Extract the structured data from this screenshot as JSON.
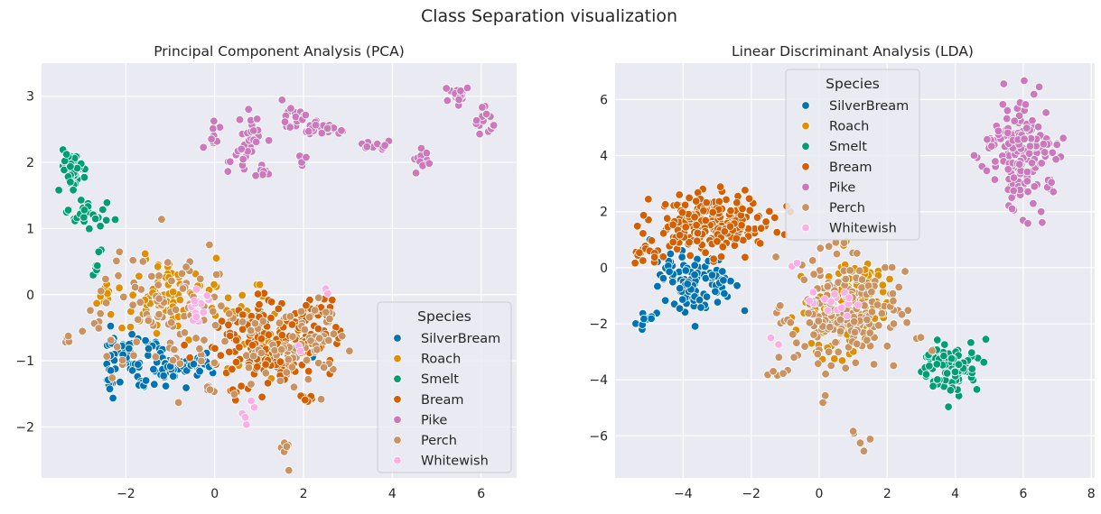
{
  "figure": {
    "suptitle": "Class Separation visualization",
    "background": "#ffffff",
    "axes_background": "#eaeaf2",
    "grid_color": "#ffffff"
  },
  "chart_data": [
    {
      "type": "scatter",
      "title": "Principal Component Analysis (PCA)",
      "xlabel": "",
      "ylabel": "",
      "xlim": [
        -3.9,
        6.8
      ],
      "ylim": [
        -2.77,
        3.5
      ],
      "xticks": [
        -2,
        0,
        2,
        4,
        6
      ],
      "yticks": [
        -2,
        -1,
        0,
        1,
        2,
        3
      ],
      "grid": true,
      "legend": {
        "title": "Species",
        "placement": "lower-right",
        "entries": [
          "SilverBream",
          "Roach",
          "Smelt",
          "Bream",
          "Pike",
          "Perch",
          "Whitewish"
        ]
      },
      "series": [
        {
          "name": "SilverBream",
          "color": "#0173b2",
          "clusters": [
            {
              "cx": -2.0,
              "cy": -0.85,
              "sx": 0.32,
              "sy": 0.18,
              "n": 50
            },
            {
              "cx": -1.1,
              "cy": -1.1,
              "sx": 0.3,
              "sy": 0.12,
              "n": 45
            },
            {
              "cx": -0.3,
              "cy": -1.05,
              "sx": 0.15,
              "sy": 0.1,
              "n": 18
            },
            {
              "cx": -2.35,
              "cy": -1.3,
              "sx": 0.06,
              "sy": 0.13,
              "n": 10
            },
            {
              "cx": -1.5,
              "cy": -1.35,
              "sx": 0.15,
              "sy": 0.06,
              "n": 8
            },
            {
              "cx": 2.2,
              "cy": -0.85,
              "sx": 0.08,
              "sy": 0.08,
              "n": 3
            }
          ]
        },
        {
          "name": "Roach",
          "color": "#de8f05",
          "clusters": [
            {
              "cx": -1.1,
              "cy": -0.05,
              "sx": 0.5,
              "sy": 0.28,
              "n": 75
            },
            {
              "cx": 0.5,
              "cy": -0.3,
              "sx": 0.35,
              "sy": 0.28,
              "n": 30
            },
            {
              "cx": -2.5,
              "cy": -0.1,
              "sx": 0.07,
              "sy": 0.15,
              "n": 10
            },
            {
              "cx": 1.6,
              "cy": -0.6,
              "sx": 0.3,
              "sy": 0.25,
              "n": 10
            }
          ]
        },
        {
          "name": "Smelt",
          "color": "#029e73",
          "clusters": [
            {
              "cx": -3.2,
              "cy": 1.9,
              "sx": 0.12,
              "sy": 0.18,
              "n": 55
            },
            {
              "cx": -2.85,
              "cy": 1.22,
              "sx": 0.22,
              "sy": 0.09,
              "n": 26
            },
            {
              "cx": -2.65,
              "cy": 0.5,
              "sx": 0.06,
              "sy": 0.12,
              "n": 10
            },
            {
              "cx": 1.1,
              "cy": -0.35,
              "sx": 0.1,
              "sy": 0.08,
              "n": 4
            },
            {
              "cx": 1.7,
              "cy": -1.0,
              "sx": 0.1,
              "sy": 0.08,
              "n": 3
            }
          ]
        },
        {
          "name": "Bream",
          "color": "#d55e00",
          "clusters": [
            {
              "cx": 1.0,
              "cy": -0.75,
              "sx": 0.55,
              "sy": 0.3,
              "n": 150
            },
            {
              "cx": 2.3,
              "cy": -0.5,
              "sx": 0.25,
              "sy": 0.28,
              "n": 45
            },
            {
              "cx": 1.6,
              "cy": -1.0,
              "sx": 0.35,
              "sy": 0.15,
              "n": 30
            },
            {
              "cx": 2.1,
              "cy": -1.55,
              "sx": 0.1,
              "sy": 0.05,
              "n": 7
            },
            {
              "cx": 0.55,
              "cy": -1.45,
              "sx": 0.08,
              "sy": 0.04,
              "n": 4
            }
          ]
        },
        {
          "name": "Pike",
          "color": "#cc78bc",
          "clusters": [
            {
              "cx": 0.0,
              "cy": 2.38,
              "sx": 0.1,
              "sy": 0.15,
              "n": 8
            },
            {
              "cx": 0.55,
              "cy": 2.05,
              "sx": 0.15,
              "sy": 0.1,
              "n": 15
            },
            {
              "cx": 0.9,
              "cy": 2.45,
              "sx": 0.2,
              "sy": 0.12,
              "n": 18
            },
            {
              "cx": 1.05,
              "cy": 1.85,
              "sx": 0.1,
              "sy": 0.06,
              "n": 7
            },
            {
              "cx": 1.8,
              "cy": 2.68,
              "sx": 0.15,
              "sy": 0.12,
              "n": 18
            },
            {
              "cx": 2.2,
              "cy": 2.55,
              "sx": 0.12,
              "sy": 0.08,
              "n": 12
            },
            {
              "cx": 2.7,
              "cy": 2.52,
              "sx": 0.15,
              "sy": 0.06,
              "n": 14
            },
            {
              "cx": 1.95,
              "cy": 2.05,
              "sx": 0.06,
              "sy": 0.06,
              "n": 6
            },
            {
              "cx": 3.65,
              "cy": 2.25,
              "sx": 0.15,
              "sy": 0.04,
              "n": 10
            },
            {
              "cx": 4.65,
              "cy": 2.0,
              "sx": 0.1,
              "sy": 0.08,
              "n": 12
            },
            {
              "cx": 5.5,
              "cy": 3.0,
              "sx": 0.12,
              "sy": 0.1,
              "n": 18
            },
            {
              "cx": 6.15,
              "cy": 2.55,
              "sx": 0.08,
              "sy": 0.1,
              "n": 9
            },
            {
              "cx": 6.05,
              "cy": 2.75,
              "sx": 0.05,
              "sy": 0.06,
              "n": 4
            },
            {
              "cx": 5.85,
              "cy": 2.6,
              "sx": 0.04,
              "sy": 0.04,
              "n": 2
            },
            {
              "cx": 0.0,
              "cy": 2.65,
              "sx": 0.02,
              "sy": 0.02,
              "n": 1
            },
            {
              "cx": -0.25,
              "cy": 2.2,
              "sx": 0.02,
              "sy": 0.02,
              "n": 1
            }
          ]
        },
        {
          "name": "Perch",
          "color": "#ca9161",
          "clusters": [
            {
              "cx": -1.0,
              "cy": -0.3,
              "sx": 0.7,
              "sy": 0.45,
              "n": 90
            },
            {
              "cx": 1.6,
              "cy": -0.9,
              "sx": 0.55,
              "sy": 0.3,
              "n": 55
            },
            {
              "cx": 2.3,
              "cy": -0.6,
              "sx": 0.3,
              "sy": 0.3,
              "n": 22
            },
            {
              "cx": -3.3,
              "cy": -0.72,
              "sx": 0.06,
              "sy": 0.08,
              "n": 5
            },
            {
              "cx": 1.6,
              "cy": -2.35,
              "sx": 0.08,
              "sy": 0.1,
              "n": 6
            },
            {
              "cx": -2.6,
              "cy": -0.3,
              "sx": 0.15,
              "sy": 0.2,
              "n": 10
            },
            {
              "cx": -0.05,
              "cy": -1.35,
              "sx": 0.1,
              "sy": 0.06,
              "n": 5
            }
          ]
        },
        {
          "name": "Whitewish",
          "color": "#fbafe4",
          "clusters": [
            {
              "cx": -0.4,
              "cy": -0.2,
              "sx": 0.12,
              "sy": 0.12,
              "n": 16
            },
            {
              "cx": 0.75,
              "cy": -1.85,
              "sx": 0.05,
              "sy": 0.1,
              "n": 5
            },
            {
              "cx": 2.5,
              "cy": 0.05,
              "sx": 0.04,
              "sy": 0.03,
              "n": 2
            },
            {
              "cx": 1.9,
              "cy": -0.8,
              "sx": 0.05,
              "sy": 0.05,
              "n": 2
            }
          ]
        }
      ]
    },
    {
      "type": "scatter",
      "title": "Linear Discriminant Analysis (LDA)",
      "xlabel": "",
      "ylabel": "",
      "xlim": [
        -6.0,
        8.1
      ],
      "ylim": [
        -7.5,
        7.3
      ],
      "xticks": [
        -4,
        -2,
        0,
        2,
        4,
        6,
        8
      ],
      "yticks": [
        -6,
        -4,
        -2,
        0,
        2,
        4,
        6
      ],
      "grid": true,
      "legend": {
        "title": "Species",
        "placement": "upper-center",
        "entries": [
          "SilverBream",
          "Roach",
          "Smelt",
          "Bream",
          "Pike",
          "Perch",
          "Whitewish"
        ]
      },
      "series": [
        {
          "name": "SilverBream",
          "color": "#0173b2",
          "clusters": [
            {
              "cx": -3.7,
              "cy": -0.6,
              "sx": 0.55,
              "sy": 0.6,
              "n": 110
            },
            {
              "cx": -5.1,
              "cy": -1.9,
              "sx": 0.15,
              "sy": 0.2,
              "n": 9
            }
          ]
        },
        {
          "name": "Roach",
          "color": "#de8f05",
          "clusters": [
            {
              "cx": 0.9,
              "cy": -1.1,
              "sx": 0.6,
              "sy": 0.7,
              "n": 110
            },
            {
              "cx": 0.2,
              "cy": -3.2,
              "sx": 0.4,
              "sy": 0.3,
              "n": 8
            }
          ]
        },
        {
          "name": "Smelt",
          "color": "#029e73",
          "clusters": [
            {
              "cx": 3.8,
              "cy": -3.5,
              "sx": 0.4,
              "sy": 0.45,
              "n": 110
            },
            {
              "cx": -2.9,
              "cy": 1.2,
              "sx": 0.05,
              "sy": 0.05,
              "n": 2
            }
          ]
        },
        {
          "name": "Bream",
          "color": "#d55e00",
          "clusters": [
            {
              "cx": -3.2,
              "cy": 1.55,
              "sx": 0.8,
              "sy": 0.55,
              "n": 220
            },
            {
              "cx": -5.2,
              "cy": 0.45,
              "sx": 0.2,
              "sy": 0.2,
              "n": 12
            }
          ]
        },
        {
          "name": "Pike",
          "color": "#cc78bc",
          "clusters": [
            {
              "cx": 5.9,
              "cy": 4.1,
              "sx": 0.5,
              "sy": 0.9,
              "n": 180
            },
            {
              "cx": 6.0,
              "cy": 6.65,
              "sx": 0.02,
              "sy": 0.02,
              "n": 1
            },
            {
              "cx": 6.1,
              "cy": 1.6,
              "sx": 0.02,
              "sy": 0.02,
              "n": 1
            }
          ]
        },
        {
          "name": "Perch",
          "color": "#ca9161",
          "clusters": [
            {
              "cx": 0.8,
              "cy": -1.5,
              "sx": 0.85,
              "sy": 1.05,
              "n": 210
            },
            {
              "cx": 1.0,
              "cy": -6.3,
              "sx": 0.3,
              "sy": 0.3,
              "n": 5
            },
            {
              "cx": -1.1,
              "cy": -3.8,
              "sx": 0.25,
              "sy": 0.2,
              "n": 5
            },
            {
              "cx": 0.1,
              "cy": -4.7,
              "sx": 0.1,
              "sy": 0.1,
              "n": 2
            }
          ]
        },
        {
          "name": "Whitewish",
          "color": "#fbafe4",
          "clusters": [
            {
              "cx": 0.4,
              "cy": -1.2,
              "sx": 0.4,
              "sy": 0.3,
              "n": 16
            },
            {
              "cx": -1.3,
              "cy": -2.6,
              "sx": 0.1,
              "sy": 0.1,
              "n": 2
            },
            {
              "cx": -0.8,
              "cy": 0.0,
              "sx": 0.1,
              "sy": 0.15,
              "n": 2
            }
          ]
        }
      ]
    }
  ]
}
